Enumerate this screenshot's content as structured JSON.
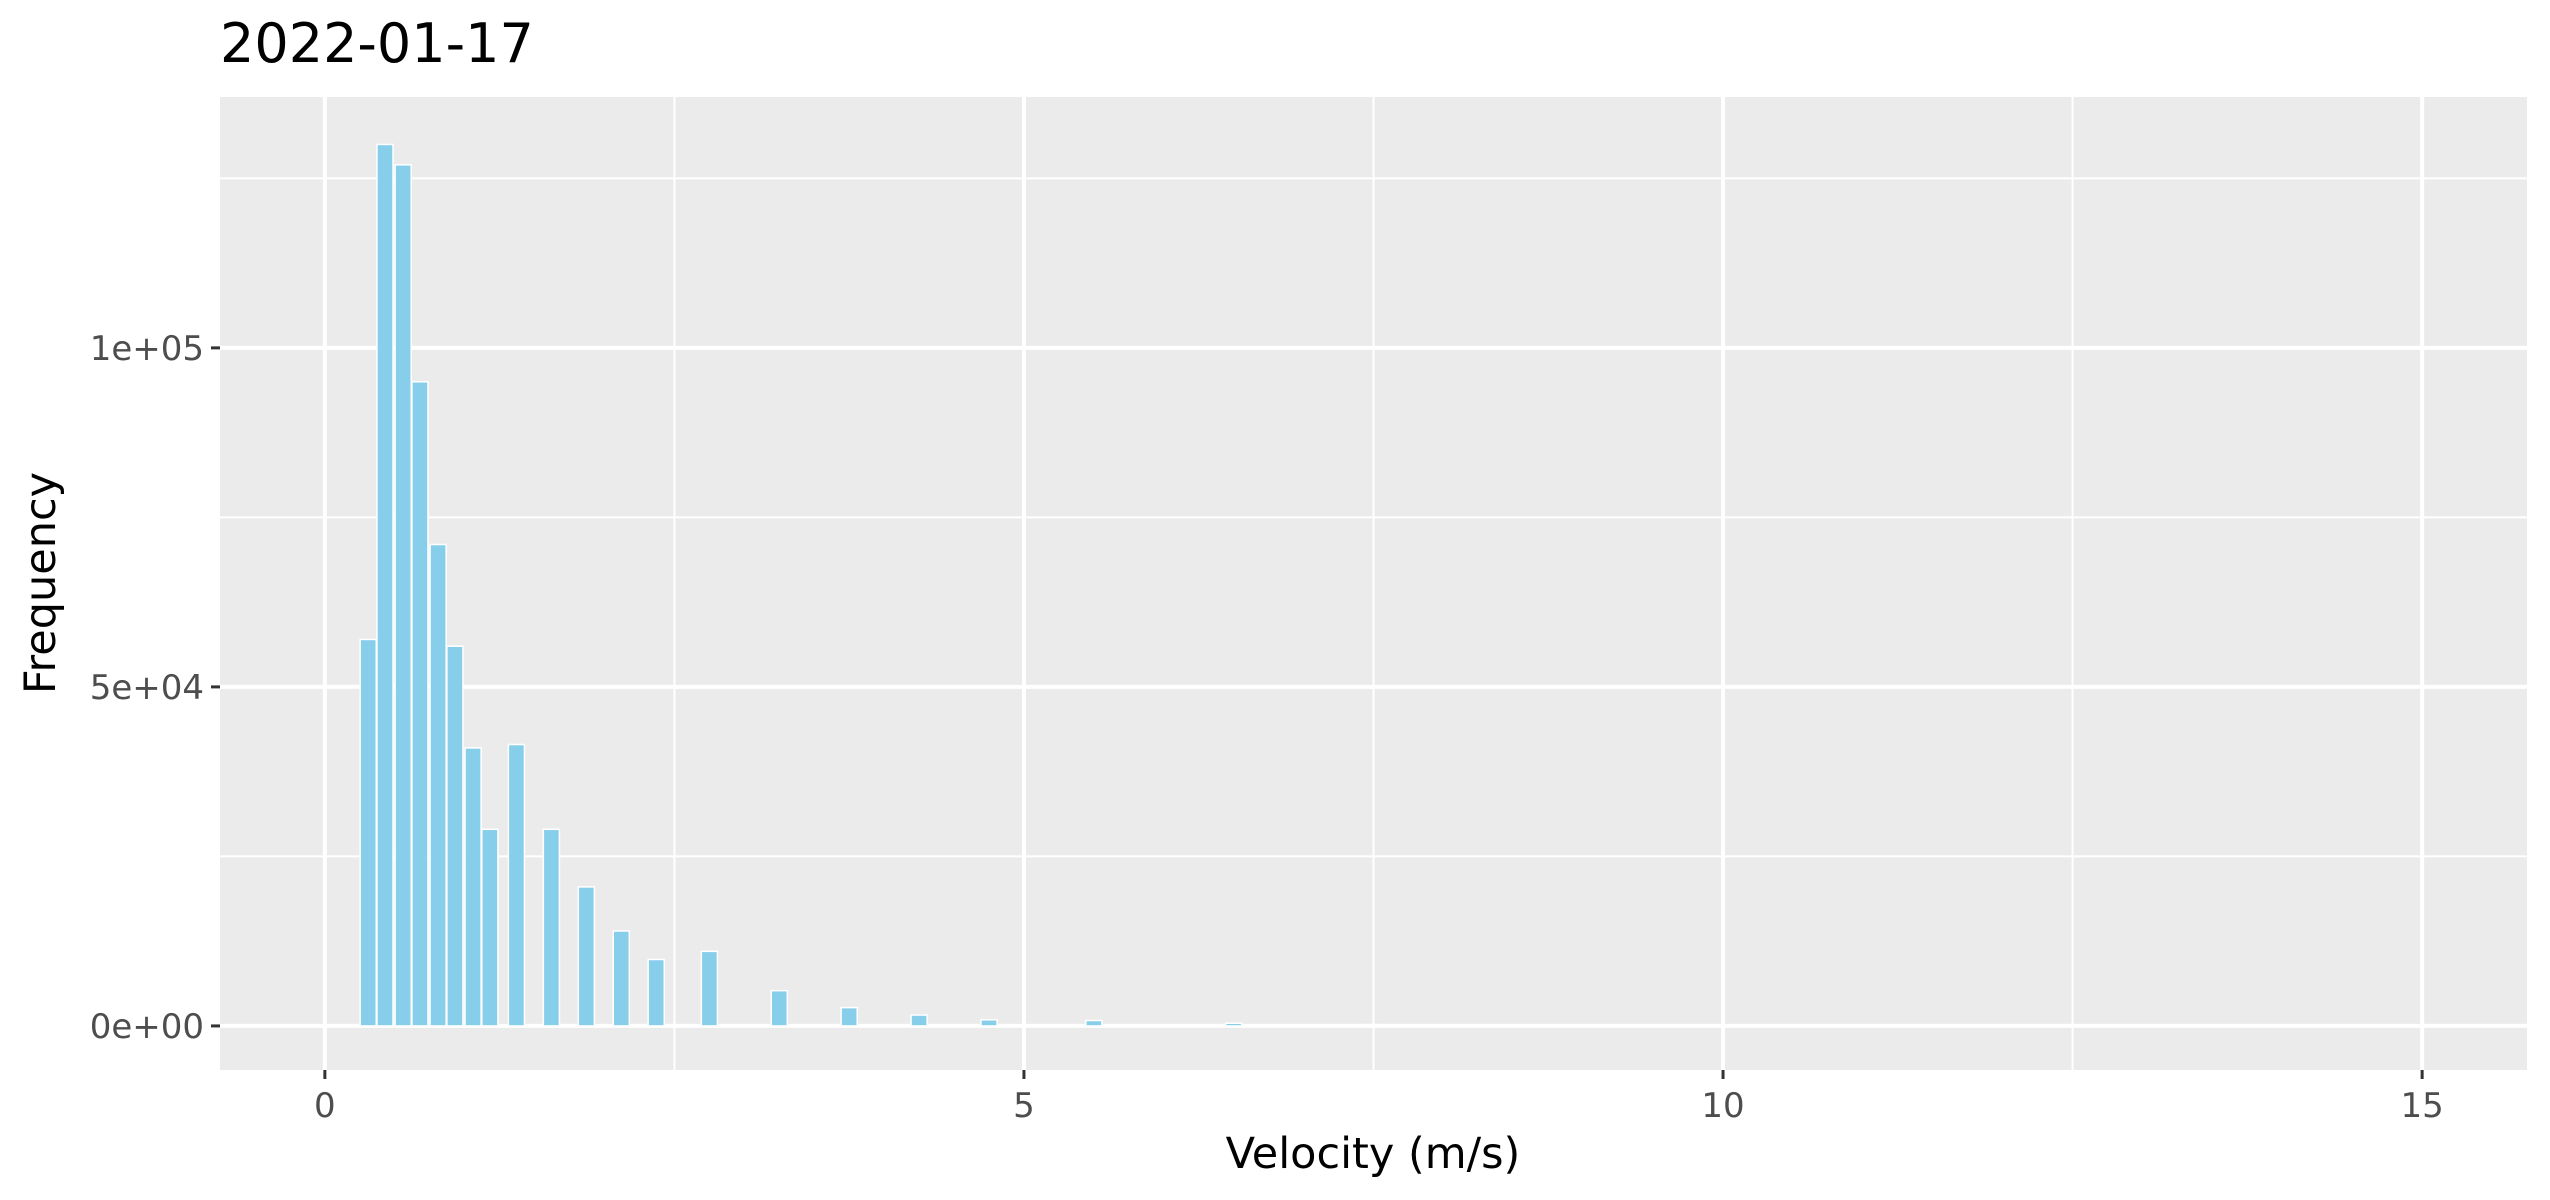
{
  "chart_data": {
    "type": "bar",
    "title": "2022-01-17",
    "xlabel": "Velocity (m/s)",
    "ylabel": "Frequency",
    "xlim": [
      -0.75,
      15.75
    ],
    "ylim": [
      -6500,
      137000
    ],
    "x_ticks": [
      0,
      5,
      10,
      15
    ],
    "y_ticks": [
      0,
      50000,
      100000
    ],
    "y_tick_labels": [
      "0e+00",
      "5e+04",
      "1e+05"
    ],
    "x_minor": [
      2.5,
      7.5,
      12.5
    ],
    "y_minor": [
      25000,
      75000,
      125000
    ],
    "grid": true,
    "bar_width": 0.115,
    "series": [
      {
        "color": "#87CEEB",
        "points": [
          {
            "x": 0.31,
            "y": 57000
          },
          {
            "x": 0.43,
            "y": 130000
          },
          {
            "x": 0.56,
            "y": 127000
          },
          {
            "x": 0.68,
            "y": 95000
          },
          {
            "x": 0.81,
            "y": 71000
          },
          {
            "x": 0.93,
            "y": 56000
          },
          {
            "x": 1.06,
            "y": 41000
          },
          {
            "x": 1.18,
            "y": 29000
          },
          {
            "x": 1.37,
            "y": 41500
          },
          {
            "x": 1.62,
            "y": 29000
          },
          {
            "x": 1.87,
            "y": 20500
          },
          {
            "x": 2.12,
            "y": 14000
          },
          {
            "x": 2.37,
            "y": 9800
          },
          {
            "x": 2.75,
            "y": 11000
          },
          {
            "x": 3.25,
            "y": 5200
          },
          {
            "x": 3.75,
            "y": 2700
          },
          {
            "x": 4.25,
            "y": 1600
          },
          {
            "x": 4.75,
            "y": 900
          },
          {
            "x": 5.5,
            "y": 800
          },
          {
            "x": 6.5,
            "y": 400
          },
          {
            "x": 7.5,
            "y": 200
          },
          {
            "x": 8.5,
            "y": 100
          }
        ]
      }
    ]
  }
}
